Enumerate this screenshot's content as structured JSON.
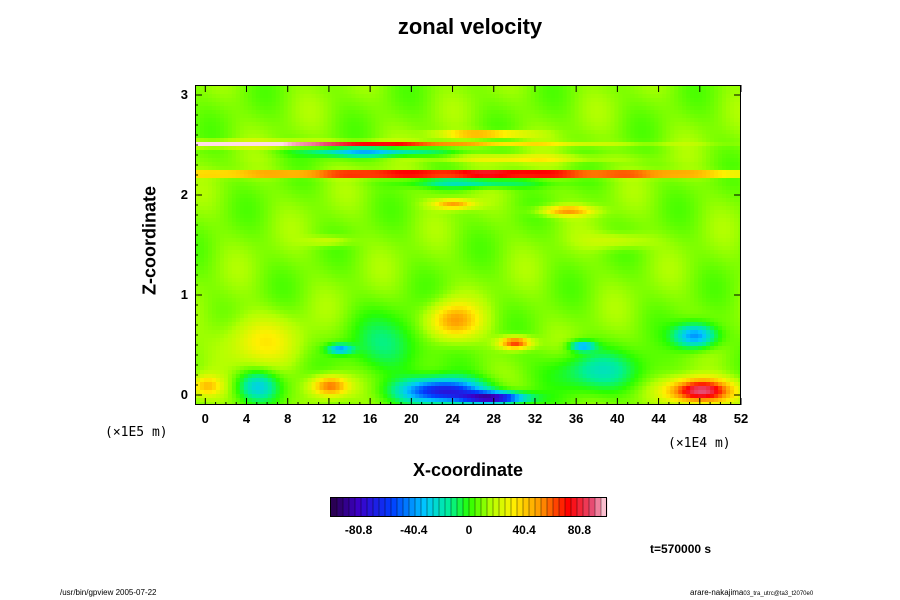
{
  "chart_data": {
    "type": "heatmap",
    "title": "zonal velocity",
    "xlabel": "X-coordinate",
    "ylabel": "Z-coordinate",
    "x_ticks": [
      "0",
      "4",
      "8",
      "12",
      "16",
      "20",
      "24",
      "28",
      "32",
      "36",
      "40",
      "44",
      "48",
      "52"
    ],
    "y_ticks": [
      "0",
      "1",
      "2",
      "3"
    ],
    "xlim": [
      -1,
      52
    ],
    "ylim": [
      -0.1,
      3.1
    ],
    "x_unit": "(×1E4 m)",
    "y_unit": "(×1E5 m)",
    "colorbar_ticks": [
      "-80.8",
      "-40.4",
      "0",
      "40.4",
      "80.8"
    ],
    "colorbar_range": [
      -101,
      101
    ],
    "time_label": "t=570000 s",
    "features": [
      {
        "x": 0,
        "z": 2.52,
        "sx": 26,
        "sz": 0.025,
        "v": 100
      },
      {
        "x": 26,
        "z": 2.22,
        "sx": 26,
        "sz": 0.03,
        "v": 100
      },
      {
        "x": 16,
        "z": 2.44,
        "sx": 6,
        "sz": 0.05,
        "v": -45
      },
      {
        "x": 26,
        "z": 2.13,
        "sx": 6,
        "sz": 0.05,
        "v": -30
      },
      {
        "x": 30,
        "z": 2.37,
        "sx": 8,
        "sz": 0.04,
        "v": 22
      },
      {
        "x": 27,
        "z": 2.62,
        "sx": 4,
        "sz": 0.03,
        "v": 55
      },
      {
        "x": 23,
        "z": 0.05,
        "sx": 4,
        "sz": 0.12,
        "v": -80
      },
      {
        "x": 28,
        "z": -0.02,
        "sx": 3,
        "sz": 0.06,
        "v": -90
      },
      {
        "x": 48,
        "z": 0.05,
        "sx": 3,
        "sz": 0.12,
        "v": 85
      },
      {
        "x": 24,
        "z": 0.75,
        "sx": 2.5,
        "sz": 0.18,
        "v": 40
      },
      {
        "x": 30,
        "z": 0.53,
        "sx": 1.5,
        "sz": 0.06,
        "v": 60
      },
      {
        "x": 12,
        "z": 0.1,
        "sx": 1.8,
        "sz": 0.1,
        "v": 50
      },
      {
        "x": 47.5,
        "z": 0.6,
        "sx": 2,
        "sz": 0.12,
        "v": -55
      },
      {
        "x": 13,
        "z": 0.47,
        "sx": 1.2,
        "sz": 0.05,
        "v": -45
      },
      {
        "x": 36.5,
        "z": 0.5,
        "sx": 1.2,
        "sz": 0.05,
        "v": -45
      },
      {
        "x": 5,
        "z": 0.1,
        "sx": 2,
        "sz": 0.15,
        "v": -35
      },
      {
        "x": 0,
        "z": 0.1,
        "sx": 1.5,
        "sz": 0.1,
        "v": 30
      },
      {
        "x": 38,
        "z": 0.25,
        "sx": 5,
        "sz": 0.2,
        "v": -25
      },
      {
        "x": 18,
        "z": 0.5,
        "sx": 4,
        "sz": 0.3,
        "v": -20
      },
      {
        "x": 5,
        "z": 0.55,
        "sx": 4,
        "sz": 0.25,
        "v": 20
      },
      {
        "x": 24,
        "z": 1.92,
        "sx": 2,
        "sz": 0.05,
        "v": 40
      },
      {
        "x": 35,
        "z": 1.85,
        "sx": 2.5,
        "sz": 0.05,
        "v": 40
      },
      {
        "x": 40,
        "z": 1.55,
        "sx": 3,
        "sz": 0.08,
        "v": 15
      },
      {
        "x": 12,
        "z": 1.55,
        "sx": 2,
        "sz": 0.05,
        "v": 15
      }
    ]
  },
  "footer": {
    "left": "/usr/bin/gpview 2005-07-22",
    "right": "arare-nakajima",
    "right_sub": "03_tra_utrc@ta3_t2070e0"
  }
}
